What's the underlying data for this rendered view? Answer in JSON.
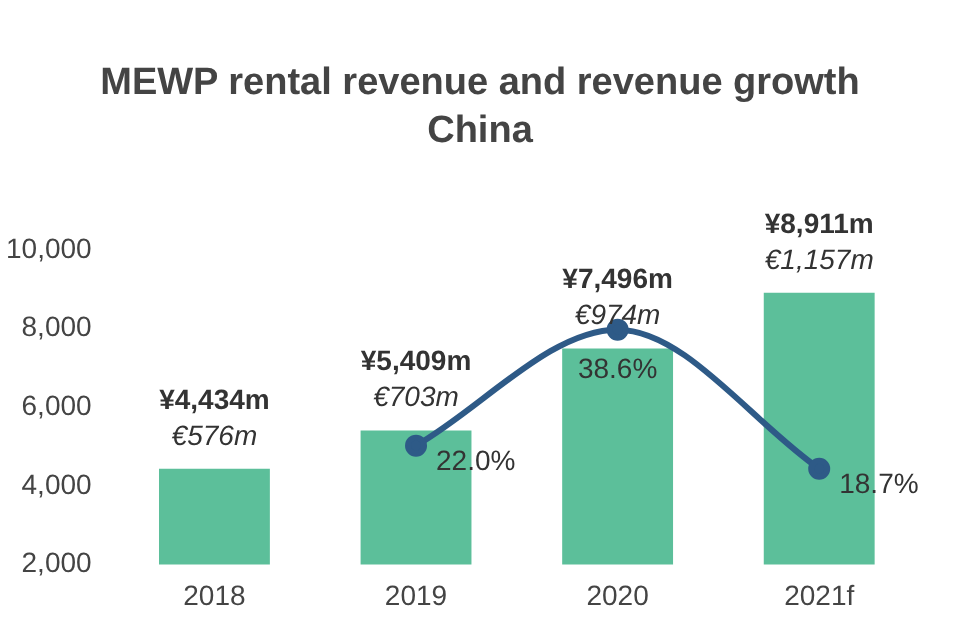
{
  "chart_data": {
    "type": "bar",
    "title": "MEWP rental revenue and revenue growth",
    "subtitle": "China",
    "categories": [
      "2018",
      "2019",
      "2020",
      "2021f"
    ],
    "series": [
      {
        "color": "#5cbf9a",
        "values": [
          4434,
          5409,
          7496,
          8911
        ],
        "value_labels": [
          "¥4,434m",
          "¥5,409m",
          "¥7,496m",
          "¥8,911m"
        ]
      },
      {
        "type": "line",
        "axis": "y2",
        "color": "#2e5a87",
        "values": [
          null,
          22.0,
          38.6,
          18.7
        ],
        "value_labels": [
          null,
          "22.0%",
          "38.6%",
          "18.7%"
        ]
      }
    ],
    "annotations": [
      {
        "text": "€576m",
        "x": "2018",
        "y": 4434
      },
      {
        "text": "€703m",
        "x": "2019",
        "y": 5409
      },
      {
        "text": "€974m",
        "x": "2020",
        "y": 7496
      },
      {
        "text": "€1,157m",
        "x": "2021f",
        "y": 8911
      }
    ],
    "ylim": [
      2000,
      10000
    ],
    "yticks": [
      {
        "value": 2000,
        "label": "2,000"
      },
      {
        "value": 4000,
        "label": "4,000"
      },
      {
        "value": 6000,
        "label": "6,000"
      },
      {
        "value": 8000,
        "label": "8,000"
      },
      {
        "value": 10000,
        "label": "10,000"
      }
    ],
    "marker": "circle",
    "grid": false,
    "legend": false
  }
}
